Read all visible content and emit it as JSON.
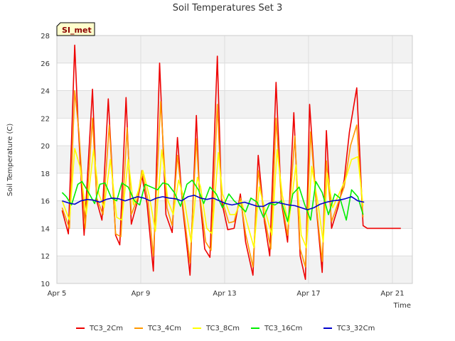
{
  "chart_data": {
    "type": "line",
    "title": "Soil Temperatures Set 3",
    "xlabel": "Time",
    "ylabel": "Soil Temperature (C)",
    "site_label": "SI_met",
    "xlim": [
      5.0,
      21.95
    ],
    "ylim": [
      10,
      28
    ],
    "x_ticks": [
      {
        "value": 5,
        "label": "Apr 5"
      },
      {
        "value": 9,
        "label": "Apr 9"
      },
      {
        "value": 13,
        "label": "Apr 13"
      },
      {
        "value": 17,
        "label": "Apr 17"
      },
      {
        "value": 21,
        "label": "Apr 21"
      }
    ],
    "y_ticks": [
      10,
      12,
      14,
      16,
      18,
      20,
      22,
      24,
      26,
      28
    ],
    "x_unit": "day of April",
    "legend_position": "bottom",
    "series": [
      {
        "name": "TC3_2Cm",
        "color": "#ee0000",
        "x": [
          5.25,
          5.55,
          5.85,
          6.0,
          6.3,
          6.7,
          6.9,
          7.15,
          7.45,
          7.8,
          8.0,
          8.3,
          8.55,
          8.85,
          9.05,
          9.3,
          9.6,
          9.9,
          10.2,
          10.5,
          10.75,
          11.0,
          11.35,
          11.65,
          11.8,
          12.05,
          12.3,
          12.65,
          12.85,
          13.15,
          13.45,
          13.75,
          14.0,
          14.35,
          14.6,
          14.9,
          15.15,
          15.45,
          15.7,
          16.0,
          16.3,
          16.6,
          16.85,
          17.05,
          17.4,
          17.65,
          17.85,
          18.1,
          18.4,
          18.7,
          18.95,
          19.3,
          19.6,
          19.8,
          20.1,
          20.35,
          20.6,
          20.95,
          21.15,
          21.4
        ],
        "y": [
          15.3,
          13.6,
          27.3,
          22.0,
          13.5,
          24.1,
          16.0,
          14.6,
          23.4,
          13.5,
          12.8,
          23.5,
          14.3,
          16.0,
          17.8,
          15.8,
          10.9,
          26.0,
          15.0,
          13.7,
          20.6,
          15.5,
          10.6,
          22.2,
          16.5,
          12.5,
          11.9,
          26.5,
          16.0,
          13.9,
          14.0,
          16.5,
          13.0,
          10.6,
          19.3,
          14.5,
          12.0,
          24.6,
          16.0,
          13.0,
          22.4,
          12.0,
          10.3,
          23.0,
          15.0,
          10.8,
          21.1,
          14.0,
          15.5,
          17.5,
          21.0,
          24.2,
          14.2,
          14.0,
          14.0,
          14.0,
          14.0,
          14.0,
          14.0,
          14.0
        ]
      },
      {
        "name": "TC3_4Cm",
        "color": "#ff9900",
        "x": [
          5.25,
          5.6,
          5.85,
          6.05,
          6.35,
          6.7,
          6.9,
          7.2,
          7.5,
          7.8,
          8.05,
          8.35,
          8.55,
          8.85,
          9.05,
          9.35,
          9.6,
          9.95,
          10.25,
          10.5,
          10.75,
          11.0,
          11.35,
          11.65,
          11.8,
          12.1,
          12.35,
          12.65,
          12.85,
          13.2,
          13.45,
          13.75,
          14.0,
          14.35,
          14.6,
          14.9,
          15.2,
          15.45,
          15.7,
          16.0,
          16.35,
          16.6,
          16.85,
          17.1,
          17.4,
          17.65,
          17.85,
          18.1,
          18.4,
          18.7,
          19.0,
          19.3,
          19.6
        ],
        "y": [
          15.5,
          14.0,
          24.0,
          21.0,
          14.0,
          22.0,
          16.2,
          15.0,
          21.5,
          13.6,
          13.4,
          21.3,
          15.0,
          16.2,
          18.2,
          16.0,
          12.0,
          23.2,
          15.5,
          14.2,
          19.3,
          15.8,
          11.5,
          20.5,
          16.6,
          13.0,
          12.4,
          23.0,
          16.2,
          14.4,
          14.5,
          16.2,
          13.6,
          11.2,
          18.2,
          14.8,
          12.5,
          22.0,
          16.2,
          13.5,
          20.7,
          12.5,
          11.2,
          21.0,
          15.2,
          11.6,
          18.9,
          14.5,
          15.8,
          17.0,
          20.0,
          21.5,
          14.8
        ]
      },
      {
        "name": "TC3_8Cm",
        "color": "#ffff00",
        "x": [
          5.25,
          5.6,
          5.85,
          6.1,
          6.4,
          6.75,
          7.0,
          7.25,
          7.55,
          7.85,
          8.1,
          8.4,
          8.65,
          8.9,
          9.1,
          9.4,
          9.7,
          10.0,
          10.3,
          10.55,
          10.8,
          11.05,
          11.4,
          11.7,
          11.85,
          12.15,
          12.4,
          12.7,
          12.9,
          13.25,
          13.5,
          13.8,
          14.05,
          14.4,
          14.65,
          14.95,
          15.25,
          15.5,
          15.75,
          16.05,
          16.4,
          16.65,
          16.9,
          17.15,
          17.45,
          17.7,
          17.9,
          18.15,
          18.45,
          18.75,
          19.05,
          19.35,
          19.6
        ],
        "y": [
          16.0,
          14.6,
          19.8,
          18.5,
          15.0,
          19.7,
          16.5,
          15.5,
          19.0,
          14.8,
          14.6,
          19.0,
          15.7,
          16.8,
          18.2,
          16.4,
          13.8,
          19.7,
          16.0,
          15.0,
          17.5,
          16.3,
          13.0,
          17.7,
          17.0,
          14.0,
          13.6,
          19.5,
          16.5,
          15.0,
          15.0,
          16.0,
          14.5,
          12.6,
          17.0,
          15.2,
          13.5,
          19.7,
          16.4,
          14.3,
          18.6,
          13.5,
          12.6,
          18.5,
          15.8,
          13.0,
          18.0,
          15.5,
          16.5,
          17.5,
          19.0,
          19.2,
          15.6
        ]
      },
      {
        "name": "TC3_16Cm",
        "color": "#00ee00",
        "x": [
          5.25,
          5.45,
          5.7,
          6.0,
          6.2,
          6.55,
          6.8,
          7.05,
          7.3,
          7.6,
          7.85,
          8.1,
          8.4,
          8.7,
          8.95,
          9.2,
          9.5,
          9.8,
          10.05,
          10.3,
          10.6,
          10.9,
          11.2,
          11.45,
          11.75,
          12.0,
          12.3,
          12.6,
          12.9,
          13.2,
          13.45,
          13.75,
          14.0,
          14.25,
          14.55,
          14.85,
          15.15,
          15.4,
          15.7,
          16.0,
          16.25,
          16.55,
          16.8,
          17.1,
          17.35,
          17.65,
          17.95,
          18.25,
          18.5,
          18.8,
          19.05,
          19.35,
          19.6
        ],
        "y": [
          16.6,
          16.3,
          15.7,
          17.2,
          17.4,
          16.5,
          15.8,
          17.2,
          17.3,
          16.2,
          16.0,
          17.3,
          17.0,
          16.0,
          15.7,
          17.2,
          17.0,
          16.8,
          17.3,
          17.2,
          16.6,
          15.6,
          17.2,
          17.5,
          16.8,
          15.8,
          17.0,
          16.5,
          15.5,
          16.5,
          16.0,
          15.6,
          15.2,
          16.2,
          15.9,
          14.8,
          15.8,
          15.7,
          16.0,
          14.5,
          16.5,
          17.0,
          15.8,
          14.6,
          17.4,
          16.6,
          15.0,
          16.5,
          16.2,
          14.6,
          16.8,
          16.3,
          15.0
        ]
      },
      {
        "name": "TC3_32Cm",
        "color": "#0000cc",
        "x": [
          5.25,
          5.55,
          5.85,
          6.15,
          6.45,
          6.75,
          7.05,
          7.35,
          7.65,
          7.95,
          8.25,
          8.55,
          8.85,
          9.15,
          9.45,
          9.75,
          10.05,
          10.35,
          10.65,
          10.95,
          11.25,
          11.55,
          11.85,
          12.15,
          12.45,
          12.75,
          13.05,
          13.35,
          13.65,
          13.95,
          14.25,
          14.55,
          14.85,
          15.15,
          15.45,
          15.75,
          16.05,
          16.35,
          16.65,
          16.95,
          17.25,
          17.55,
          17.85,
          18.15,
          18.45,
          18.75,
          19.05,
          19.35,
          19.65
        ],
        "y": [
          16.0,
          15.85,
          15.75,
          16.0,
          16.1,
          16.05,
          15.9,
          16.1,
          16.2,
          16.15,
          16.0,
          16.15,
          16.3,
          16.2,
          16.0,
          16.2,
          16.3,
          16.2,
          16.15,
          16.0,
          16.3,
          16.4,
          16.2,
          16.1,
          16.2,
          16.0,
          15.8,
          15.7,
          15.8,
          15.9,
          15.75,
          15.6,
          15.6,
          15.85,
          15.9,
          15.8,
          15.7,
          15.65,
          15.5,
          15.35,
          15.5,
          15.75,
          15.9,
          16.0,
          16.05,
          16.15,
          16.3,
          16.0,
          15.9
        ]
      }
    ]
  }
}
